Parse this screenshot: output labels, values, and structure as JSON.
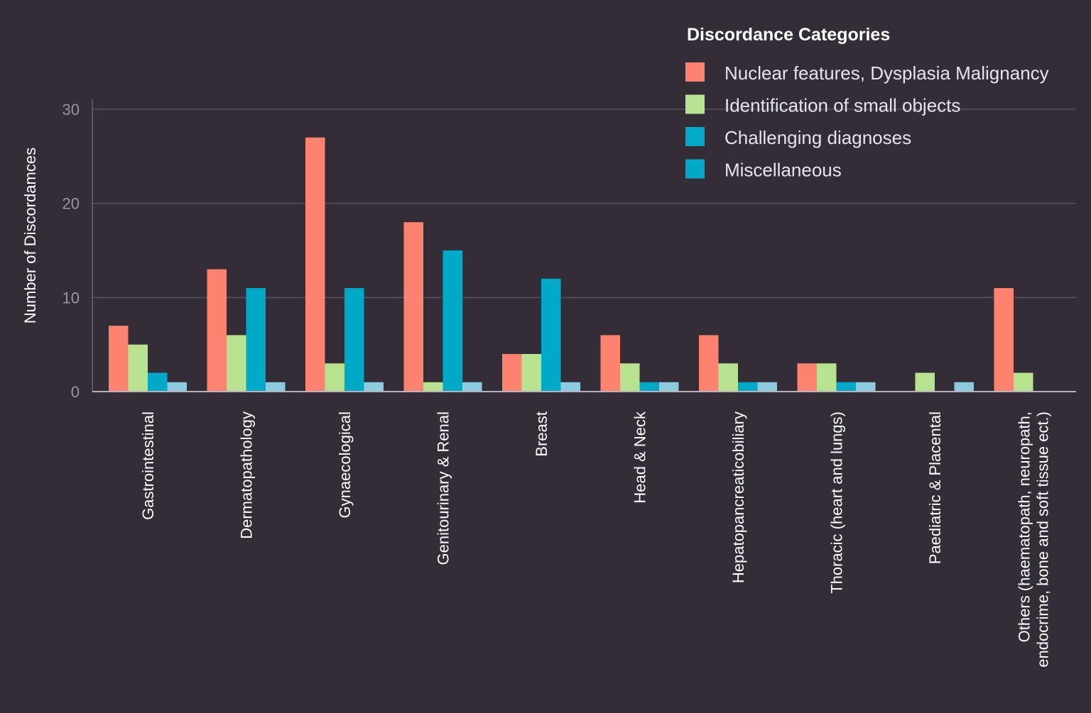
{
  "chart_data": {
    "type": "bar",
    "title": "",
    "xlabel": "",
    "ylabel": "Number of Discordamces",
    "ylim": [
      0,
      30
    ],
    "yticks": [
      0,
      10,
      20,
      30
    ],
    "grid": true,
    "legend_title": "Discordance Categories",
    "legend_position": "top-right",
    "categories": [
      "Gastrointestinal",
      "Dermatopathology",
      "Gynaecological",
      "Genitourinary & Renal",
      "Breast",
      "Head & Neck",
      "Hepatopancreaticobiliary",
      "Thoracic (heart and lungs)",
      "Paediatric & Placental",
      [
        "Others (haematopath, neuropath,",
        "endocrime, bone and soft tissue ect.)"
      ]
    ],
    "series": [
      {
        "name": "Nuclear features, Dysplasia Malignancy",
        "color": "#fe8270",
        "legend_color": "#fe8270",
        "values": [
          7,
          13,
          27,
          18,
          4,
          6,
          6,
          3,
          0,
          11
        ]
      },
      {
        "name": "Identification of small objects",
        "color": "#b9e290",
        "legend_color": "#b9e290",
        "values": [
          5,
          6,
          3,
          1,
          4,
          3,
          3,
          3,
          2,
          2
        ]
      },
      {
        "name": "Challenging diagnoses",
        "color": "#00a9c8",
        "legend_color": "#00a9c8",
        "values": [
          2,
          11,
          11,
          15,
          12,
          1,
          1,
          1,
          0,
          0
        ]
      },
      {
        "name": "Miscellaneous",
        "color": "#8ccbe0",
        "legend_color": "#00a9c8",
        "values": [
          1,
          1,
          1,
          1,
          1,
          1,
          1,
          1,
          1,
          0
        ]
      }
    ]
  }
}
